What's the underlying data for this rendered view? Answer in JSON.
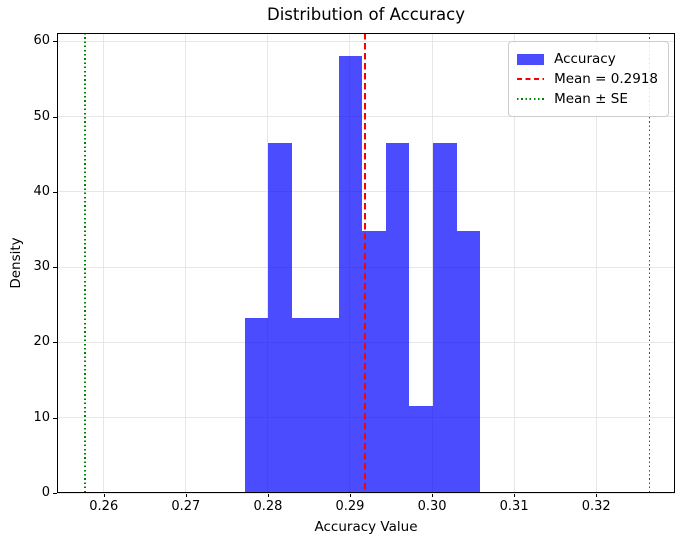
{
  "chart_data": {
    "type": "bar",
    "subtype": "histogram",
    "title": "Distribution of Accuracy",
    "xlabel": "Accuracy Value",
    "ylabel": "Density",
    "xlim": [
      0.2543,
      0.3296
    ],
    "ylim": [
      0,
      61.1
    ],
    "grid": true,
    "x_ticks": [
      0.26,
      0.27,
      0.28,
      0.29,
      0.3,
      0.31,
      0.32
    ],
    "x_tick_labels": [
      "0.26",
      "0.27",
      "0.28",
      "0.29",
      "0.30",
      "0.31",
      "0.32"
    ],
    "y_ticks": [
      0,
      10,
      20,
      30,
      40,
      50,
      60
    ],
    "y_tick_labels": [
      "0",
      "10",
      "20",
      "30",
      "40",
      "50",
      "60"
    ],
    "histogram": {
      "bin_start": 0.27715,
      "bin_width": 0.00287,
      "bin_edges": [
        0.27715,
        0.28002,
        0.28289,
        0.28576,
        0.28863,
        0.2915,
        0.29437,
        0.29724,
        0.30011,
        0.30298,
        0.30585
      ],
      "densities": [
        23.2,
        46.5,
        23.2,
        23.2,
        58.1,
        34.8,
        46.5,
        11.6,
        46.5,
        34.8
      ],
      "counts": [
        2,
        4,
        2,
        2,
        5,
        3,
        4,
        1,
        4,
        3
      ],
      "color": "rgba(0,0,255,0.7)"
    },
    "vlines": [
      {
        "x": 0.2918,
        "style": "dashed",
        "color": "#ff0000",
        "name": "mean-line"
      },
      {
        "x": 0.2577,
        "style": "dotted",
        "color": "#008000",
        "name": "mean-minus-se-line"
      },
      {
        "x": 0.3265,
        "style": "dotted",
        "color": "#008000",
        "name": "mean-plus-se-line"
      }
    ],
    "mean": 0.2918,
    "legend": {
      "position": "upper right",
      "items": [
        {
          "label": "Accuracy",
          "swatch": "patch",
          "color": "rgba(0,0,255,0.7)"
        },
        {
          "label": "Mean = 0.2918",
          "swatch": "dashed-line",
          "color": "#ff0000"
        },
        {
          "label": "Mean ± SE",
          "swatch": "dotted-line",
          "color": "#008000"
        }
      ]
    },
    "colors": {
      "bar_fill": "rgba(0,0,255,0.7)",
      "mean_line": "#ff0000",
      "se_lines": "#008000",
      "grid": "#e7e7e7",
      "spine": "#000000",
      "text": "#000000",
      "background": "#ffffff"
    }
  }
}
